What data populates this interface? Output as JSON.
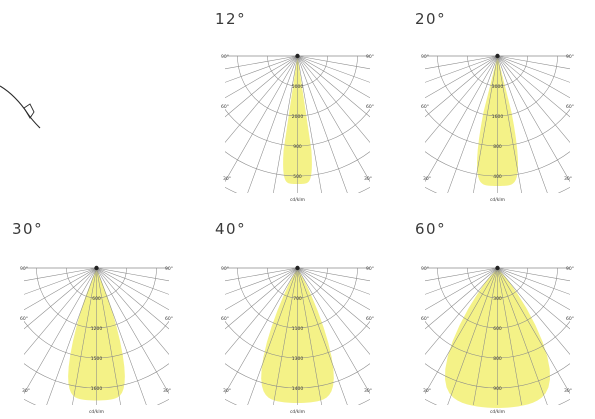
{
  "diagrams": [
    {
      "beam_label": "12°",
      "beam_angle": 12,
      "lux_values": [
        "5000",
        "2000",
        "900",
        "500"
      ],
      "footer": "cd/klm"
    },
    {
      "beam_label": "20°",
      "beam_angle": 20,
      "lux_values": [
        "3000",
        "1600",
        "800",
        "400"
      ],
      "footer": "cd/klm"
    },
    {
      "beam_label": "30°",
      "beam_angle": 30,
      "lux_values": [
        "600",
        "1200",
        "1500",
        "1600"
      ],
      "footer": "cd/klm"
    },
    {
      "beam_label": "40°",
      "beam_angle": 40,
      "lux_values": [
        "700",
        "1100",
        "1300",
        "1400"
      ],
      "footer": "cd/klm"
    },
    {
      "beam_label": "60°",
      "beam_angle": 60,
      "lux_values": [
        "300",
        "600",
        "800",
        "900"
      ],
      "footer": "cd/klm"
    }
  ],
  "angle_labels": {
    "top": "90°",
    "upper": "60°",
    "lower": "30°"
  },
  "colors": {
    "beam": "#f3f17a",
    "grid": "#8a8a8a",
    "text": "#3a3a3a"
  }
}
